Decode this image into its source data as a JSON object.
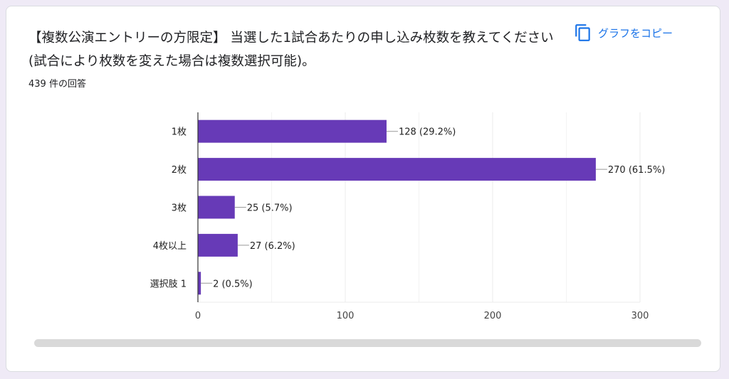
{
  "card": {
    "title": "【複数公演エントリーの方限定】 当選した1試合あたりの申し込み枚数を教えてください(試合により枚数を変えた場合は複数選択可能)。",
    "response_count": "439 件の回答",
    "copy_label": "グラフをコピー",
    "copy_icon": "copy-icon"
  },
  "colors": {
    "bar": "#673ab7",
    "accent": "#1a73e8",
    "grid": "#ebebeb",
    "axis": "#333333"
  },
  "chart_data": {
    "type": "bar",
    "orientation": "horizontal",
    "categories": [
      "1枚",
      "2枚",
      "3枚",
      "4枚以上",
      "選択肢 1"
    ],
    "values": [
      128,
      270,
      25,
      27,
      2
    ],
    "data_labels": [
      "128 (29.2%)",
      "270 (61.5%)",
      "25 (5.7%)",
      "27 (6.2%)",
      "2 (0.5%)"
    ],
    "xlim": [
      0,
      300
    ],
    "xticks": [
      0,
      100,
      200,
      300
    ],
    "grid": true
  }
}
